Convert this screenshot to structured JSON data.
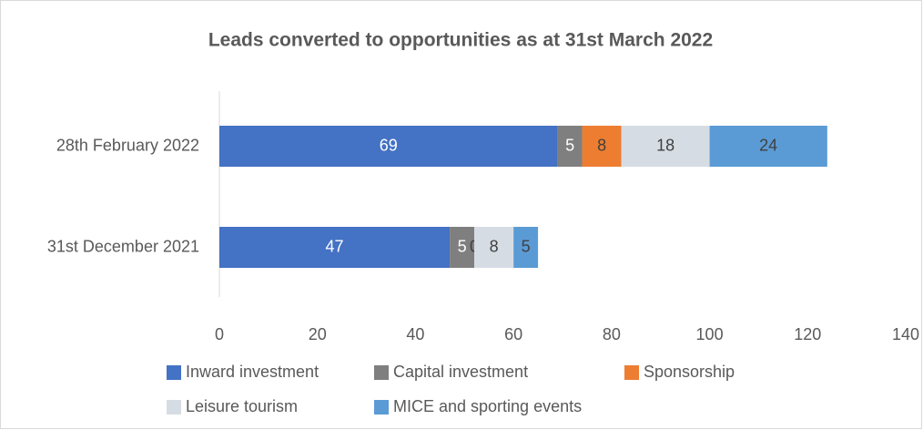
{
  "chart_data": {
    "type": "stacked-bar-horizontal",
    "title": "Leads converted to opportunities as at 31st March 2022",
    "categories": [
      "28th February 2022",
      "31st December 2021"
    ],
    "series": [
      {
        "name": "Inward investment",
        "color": "#4472c4",
        "values": [
          69,
          47
        ]
      },
      {
        "name": "Capital investment",
        "color": "#7f7f7f",
        "values": [
          5,
          5
        ]
      },
      {
        "name": "Sponsorship",
        "color": "#ed7d31",
        "values": [
          8,
          0
        ]
      },
      {
        "name": "Leisure tourism",
        "color": "#d6dce4",
        "values": [
          18,
          8
        ]
      },
      {
        "name": "MICE and sporting events",
        "color": "#5b9bd5",
        "values": [
          24,
          5
        ]
      }
    ],
    "xlim": [
      0,
      140
    ],
    "xticks": [
      0,
      20,
      40,
      60,
      80,
      100,
      120,
      140
    ],
    "grid": false,
    "legend": "bottom"
  }
}
